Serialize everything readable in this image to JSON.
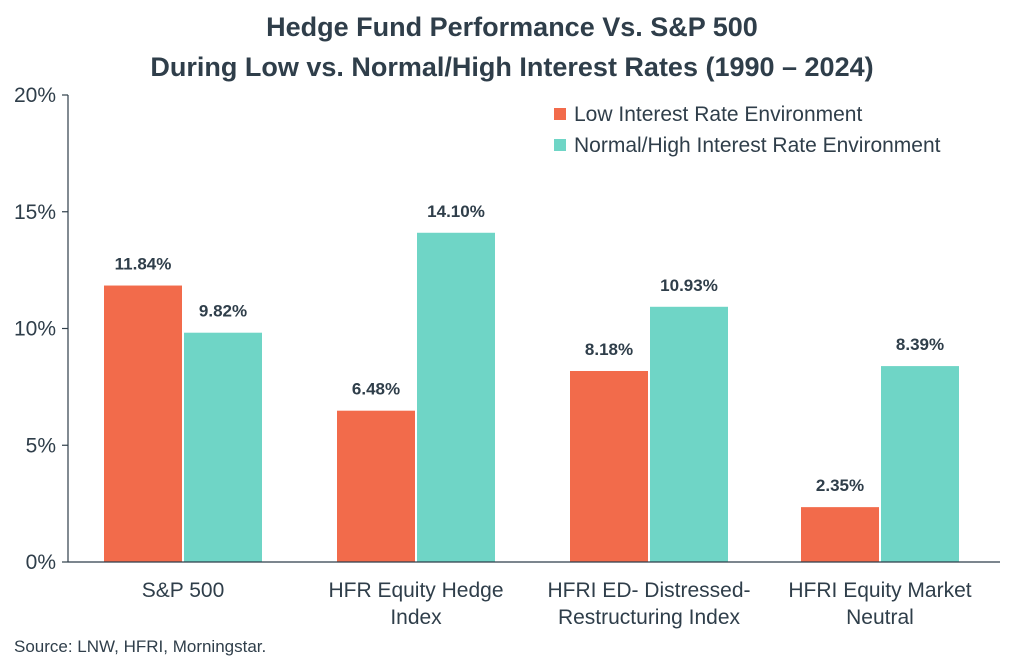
{
  "chart_data": {
    "type": "bar",
    "title_line1": "Hedge Fund Performance Vs. S&P 500",
    "title_line2": "During Low vs. Normal/High Interest Rates (1990 – 2024)",
    "categories": [
      [
        "S&P 500"
      ],
      [
        "HFR Equity Hedge",
        "Index"
      ],
      [
        "HFRI ED- Distressed-",
        "Restructuring Index"
      ],
      [
        "HFRI Equity Market",
        "Neutral"
      ]
    ],
    "series": [
      {
        "name": "Low Interest Rate Environment",
        "color": "#f26b4b",
        "values": [
          11.84,
          6.48,
          8.18,
          2.35
        ],
        "labels": [
          "11.84%",
          "6.48%",
          "8.18%",
          "2.35%"
        ]
      },
      {
        "name": "Normal/High Interest Rate Environment",
        "color": "#6fd5c6",
        "values": [
          9.82,
          14.1,
          10.93,
          8.39
        ],
        "labels": [
          "9.82%",
          "14.10%",
          "10.93%",
          "8.39%"
        ]
      }
    ],
    "ylim": [
      0,
      20
    ],
    "yticks": [
      0,
      5,
      10,
      15,
      20
    ],
    "ytick_labels": [
      "0%",
      "5%",
      "10%",
      "15%",
      "20%"
    ],
    "legend_position": "top-right",
    "source": "Source: LNW, HFRI, Morningstar."
  }
}
